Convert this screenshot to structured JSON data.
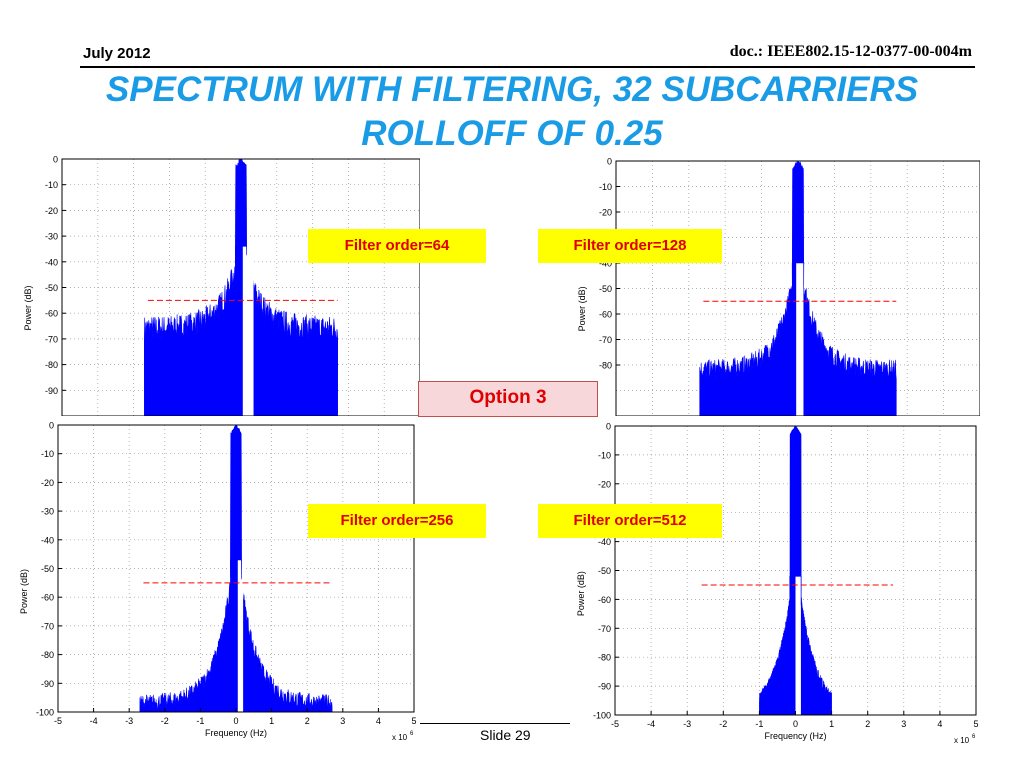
{
  "header": {
    "date": "July 2012",
    "doc_id": "doc.: IEEE802.15-12-0377-00-004m"
  },
  "title": {
    "line1": "SPECTRUM WITH FILTERING, 32 SUBCARRIERS",
    "line2": "ROLLOFF OF 0.25"
  },
  "labels": {
    "option": "Option 3"
  },
  "footer": {
    "slide": "Slide 29"
  },
  "colors": {
    "title": "#1a9be6",
    "spectrum": "#0000ff",
    "mask": "#ff0000",
    "label_bg": "#ffff00",
    "label_text": "#e00000"
  },
  "chart_data": [
    {
      "type": "area",
      "annotation": "Filter order=64",
      "xlabel": "",
      "ylabel": "Power (dB)",
      "x_multiplier": "",
      "xlim": [
        -5,
        5
      ],
      "ylim": [
        -100,
        0
      ],
      "xticks": [],
      "yticks": [
        "0",
        "-10",
        "-20",
        "-30",
        "-40",
        "-50",
        "-60",
        "-70",
        "-80",
        "-90"
      ],
      "grid": true,
      "floor_db": -66,
      "noise_db": 5,
      "knee_db": -42,
      "peak_db": 0,
      "signal_band": [
        -2.7,
        2.7
      ],
      "notch_band": [
        0.05,
        0.35
      ],
      "mask_db": -55,
      "mask_range": [
        -2.6,
        2.7
      ]
    },
    {
      "type": "area",
      "annotation": "Filter order=128",
      "xlabel": "",
      "ylabel": "Power (dB)",
      "x_multiplier": "",
      "xlim": [
        -5,
        5
      ],
      "ylim": [
        -100,
        0
      ],
      "xticks": [],
      "yticks": [
        "0",
        "-10",
        "-20",
        "-30",
        "-40",
        "-50",
        "-60",
        "-70",
        "-80"
      ],
      "grid": true,
      "floor_db": -82,
      "noise_db": 4,
      "knee_db": -48,
      "peak_db": 0,
      "signal_band": [
        -2.7,
        2.7
      ],
      "notch_band": [
        -0.05,
        0.15
      ],
      "mask_db": -55,
      "mask_range": [
        -2.6,
        2.7
      ]
    },
    {
      "type": "area",
      "annotation": "Filter order=256",
      "xlabel": "Frequency (Hz)",
      "ylabel": "Power (dB)",
      "x_multiplier": "x 10",
      "x_multiplier_exp": "6",
      "xlim": [
        -5,
        5
      ],
      "ylim": [
        -100,
        0
      ],
      "xticks": [
        "-5",
        "-4",
        "-3",
        "-2",
        "-1",
        "0",
        "1",
        "2",
        "3",
        "4",
        "5"
      ],
      "yticks": [
        "0",
        "-10",
        "-20",
        "-30",
        "-40",
        "-50",
        "-60",
        "-70",
        "-80",
        "-90",
        "-100"
      ],
      "grid": true,
      "floor_db": -97,
      "noise_db": 3,
      "knee_db": -55,
      "peak_db": 0,
      "signal_band": [
        -2.7,
        2.7
      ],
      "notch_band": [
        0.05,
        0.2
      ],
      "mask_db": -55,
      "mask_range": [
        -2.6,
        2.7
      ]
    },
    {
      "type": "area",
      "annotation": "Filter order=512",
      "xlabel": "Frequency (Hz)",
      "ylabel": "Power (dB)",
      "x_multiplier": "x 10",
      "x_multiplier_exp": "6",
      "xlim": [
        -5,
        5
      ],
      "ylim": [
        -100,
        0
      ],
      "xticks": [
        "-5",
        "-4",
        "-3",
        "-2",
        "-1",
        "0",
        "1",
        "2",
        "3",
        "4",
        "5"
      ],
      "yticks": [
        "0",
        "-10",
        "-20",
        "-30",
        "-40",
        "-50",
        "-60",
        "-70",
        "-80",
        "-90",
        "-100"
      ],
      "grid": true,
      "floor_db": -100,
      "noise_db": 2,
      "knee_db": -60,
      "peak_db": 0,
      "signal_band": [
        -1,
        1
      ],
      "notch_band": [
        0,
        0.15
      ],
      "mask_db": -55,
      "mask_range": [
        -2.6,
        2.7
      ]
    }
  ]
}
